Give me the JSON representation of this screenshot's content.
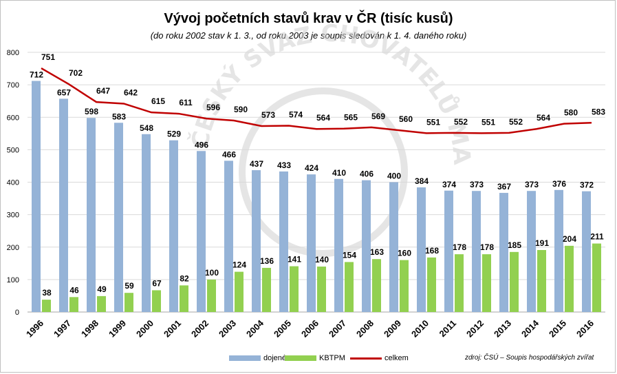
{
  "colors": {
    "dojene": "#95b3d7",
    "kbtpm": "#92d050",
    "celkem": "#c00000",
    "grid": "#d9d9d9",
    "watermark": "#d0d0d0"
  },
  "chart_data": {
    "type": "bar",
    "title": "Vývoj početních stavů krav v ČR (tisíc kusů)",
    "subtitle": "(do roku 2002 stav k 1. 3., od roku 2003 je soupis sledován k 1. 4. daného roku)",
    "categories": [
      "1996",
      "1997",
      "1998",
      "1999",
      "2000",
      "2001",
      "2002",
      "2003",
      "2004",
      "2005",
      "2006",
      "2007",
      "2008",
      "2009",
      "2010",
      "2011",
      "2012",
      "2013",
      "2014",
      "2015",
      "2016"
    ],
    "ylim": [
      0,
      800
    ],
    "yticks": [
      0,
      100,
      200,
      300,
      400,
      500,
      600,
      700,
      800
    ],
    "grid": true,
    "legend_position": "bottom",
    "series": [
      {
        "name": "dojené",
        "type": "bar",
        "values": [
          712,
          657,
          598,
          583,
          548,
          529,
          496,
          466,
          437,
          433,
          424,
          410,
          406,
          400,
          384,
          374,
          373,
          367,
          373,
          376,
          372
        ]
      },
      {
        "name": "KBTPM",
        "type": "bar",
        "values": [
          38,
          46,
          49,
          59,
          67,
          82,
          100,
          124,
          136,
          141,
          140,
          154,
          163,
          160,
          168,
          178,
          178,
          185,
          191,
          204,
          211
        ]
      },
      {
        "name": "celkem",
        "type": "line",
        "values": [
          751,
          702,
          647,
          642,
          615,
          611,
          596,
          590,
          573,
          574,
          564,
          565,
          569,
          560,
          551,
          552,
          551,
          552,
          564,
          580,
          583
        ]
      }
    ],
    "source": "zdroj: ČSÚ – Soupis hospodářských zvířat",
    "watermark": "ČESKÝ SVAZ CHOVATELŮ MASNÉHO SKOTU"
  }
}
